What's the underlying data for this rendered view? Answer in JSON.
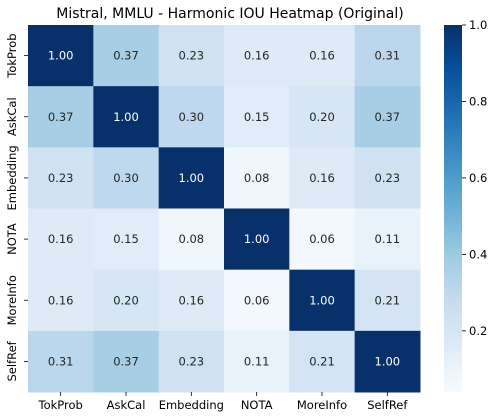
{
  "chart_data": {
    "type": "heatmap",
    "title": "Mistral, MMLU - Harmonic IOU Heatmap (Original)",
    "xlabel": "",
    "ylabel": "",
    "x_categories": [
      "TokProb",
      "AskCal",
      "Embedding",
      "NOTA",
      "MoreInfo",
      "SelfRef"
    ],
    "y_categories": [
      "TokProb",
      "AskCal",
      "Embedding",
      "NOTA",
      "MoreInfo",
      "SelfRef"
    ],
    "values": [
      [
        1.0,
        0.37,
        0.23,
        0.16,
        0.16,
        0.31
      ],
      [
        0.37,
        1.0,
        0.3,
        0.15,
        0.2,
        0.37
      ],
      [
        0.23,
        0.3,
        1.0,
        0.08,
        0.16,
        0.23
      ],
      [
        0.16,
        0.15,
        0.08,
        1.0,
        0.06,
        0.11
      ],
      [
        0.16,
        0.2,
        0.16,
        0.06,
        1.0,
        0.21
      ],
      [
        0.31,
        0.37,
        0.23,
        0.11,
        0.21,
        1.0
      ]
    ],
    "value_format": "0.00",
    "colormap": "Blues",
    "colorbar": {
      "range": [
        0.04,
        1.0
      ],
      "ticks": [
        0.2,
        0.4,
        0.6,
        0.8,
        1.0
      ],
      "tick_labels": [
        "0.2",
        "0.4",
        "0.6",
        "0.8",
        "1.0"
      ]
    },
    "grid": false,
    "legend": "colorbar-right"
  }
}
